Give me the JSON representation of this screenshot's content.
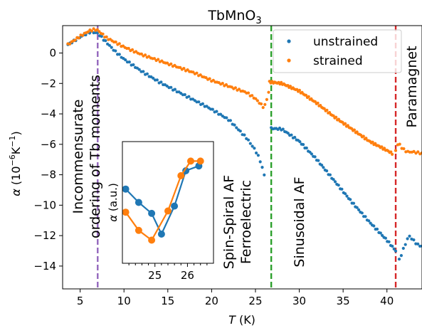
{
  "chart_data": [
    {
      "type": "scatter",
      "title_main": "TbMnO",
      "title_sub": "3",
      "xlabel_var": "T",
      "xlabel_unit": " (K)",
      "ylabel_var": "α",
      "ylabel_open": " (10",
      "ylabel_exp": "−6",
      "ylabel_unit_k": "K",
      "ylabel_unit_exp": "−1",
      "ylabel_close": ")",
      "xlim": [
        3,
        44
      ],
      "ylim": [
        -15.5,
        1.8
      ],
      "xticks": [
        "5",
        "10",
        "15",
        "20",
        "25",
        "30",
        "35",
        "40"
      ],
      "yticks": [
        "0",
        "−2",
        "−4",
        "−6",
        "−8",
        "−10",
        "−12",
        "−14"
      ],
      "ytick_values": [
        0,
        -2,
        -4,
        -6,
        -8,
        -10,
        -12,
        -14
      ],
      "xtick_values": [
        5,
        10,
        15,
        20,
        25,
        30,
        35,
        40
      ],
      "legend_position": "top-right",
      "series": [
        {
          "name": "unstrained",
          "color": "#1f77b4",
          "segments": [
            {
              "x_start": 3.6,
              "x_end": 26.0,
              "count": 100,
              "points": [
                [
                  3.6,
                  0.55
                ],
                [
                  5.0,
                  1.05
                ],
                [
                  6.2,
                  1.4
                ],
                [
                  7.0,
                  1.3
                ],
                [
                  7.5,
                  1.0
                ],
                [
                  8.0,
                  0.7
                ],
                [
                  9.0,
                  0.1
                ],
                [
                  10.0,
                  -0.4
                ],
                [
                  12.0,
                  -1.2
                ],
                [
                  14.0,
                  -1.9
                ],
                [
                  16.0,
                  -2.5
                ],
                [
                  18.0,
                  -3.1
                ],
                [
                  20.0,
                  -3.7
                ],
                [
                  22.0,
                  -4.4
                ],
                [
                  24.0,
                  -5.6
                ],
                [
                  25.0,
                  -6.4
                ],
                [
                  25.5,
                  -7.0
                ],
                [
                  26.0,
                  -8.0
                ]
              ]
            },
            {
              "x_start": 26.8,
              "x_end": 41.0,
              "count": 75,
              "points": [
                [
                  26.8,
                  -4.95
                ],
                [
                  28.0,
                  -5.0
                ],
                [
                  30.0,
                  -5.8
                ],
                [
                  32.0,
                  -7.0
                ],
                [
                  34.0,
                  -8.4
                ],
                [
                  36.0,
                  -9.8
                ],
                [
                  38.0,
                  -11.1
                ],
                [
                  40.0,
                  -12.3
                ],
                [
                  41.0,
                  -13.0
                ]
              ]
            },
            {
              "x_start": 41.4,
              "x_end": 44.0,
              "count": 12,
              "points": [
                [
                  41.4,
                  -13.6
                ],
                [
                  42.0,
                  -12.7
                ],
                [
                  42.5,
                  -12.0
                ],
                [
                  43.0,
                  -12.3
                ],
                [
                  43.5,
                  -12.6
                ],
                [
                  44.0,
                  -12.7
                ]
              ]
            }
          ]
        },
        {
          "name": "strained",
          "color": "#ff7f0e",
          "segments": [
            {
              "x_start": 3.6,
              "x_end": 26.5,
              "count": 110,
              "points": [
                [
                  3.6,
                  0.55
                ],
                [
                  5.0,
                  1.1
                ],
                [
                  6.0,
                  1.45
                ],
                [
                  6.6,
                  1.55
                ],
                [
                  7.0,
                  1.5
                ],
                [
                  7.5,
                  1.25
                ],
                [
                  8.0,
                  1.0
                ],
                [
                  10.0,
                  0.4
                ],
                [
                  12.0,
                  -0.1
                ],
                [
                  14.0,
                  -0.5
                ],
                [
                  16.0,
                  -0.9
                ],
                [
                  18.0,
                  -1.3
                ],
                [
                  20.0,
                  -1.8
                ],
                [
                  22.0,
                  -2.2
                ],
                [
                  24.0,
                  -2.6
                ],
                [
                  25.0,
                  -3.0
                ],
                [
                  25.5,
                  -3.3
                ],
                [
                  26.0,
                  -3.6
                ],
                [
                  26.5,
                  -2.6
                ]
              ]
            },
            {
              "x_start": 26.6,
              "x_end": 40.6,
              "count": 95,
              "points": [
                [
                  26.6,
                  -1.9
                ],
                [
                  28.0,
                  -2.0
                ],
                [
                  30.0,
                  -2.5
                ],
                [
                  32.0,
                  -3.3
                ],
                [
                  34.0,
                  -4.2
                ],
                [
                  36.0,
                  -5.0
                ],
                [
                  38.0,
                  -5.8
                ],
                [
                  40.0,
                  -6.4
                ],
                [
                  40.6,
                  -6.6
                ]
              ]
            },
            {
              "x_start": 41.0,
              "x_end": 44.0,
              "count": 14,
              "points": [
                [
                  41.0,
                  -6.4
                ],
                [
                  41.3,
                  -5.9
                ],
                [
                  41.8,
                  -6.3
                ],
                [
                  42.3,
                  -6.5
                ],
                [
                  43.0,
                  -6.5
                ],
                [
                  44.0,
                  -6.6
                ]
              ]
            }
          ]
        }
      ],
      "vlines": [
        {
          "x": 7.0,
          "color": "#9467bd",
          "style": "dashed"
        },
        {
          "x": 26.8,
          "color": "#2ca02c",
          "style": "dashed"
        },
        {
          "x": 41.0,
          "color": "#d62728",
          "style": "dashed"
        }
      ],
      "annotations": [
        {
          "line1": "Incommensurate",
          "line2": "ordering of Tb moments",
          "rotation": -90
        },
        {
          "line1": "Spin-Spiral AF",
          "line2": "Ferroelectric",
          "rotation": -90
        },
        {
          "line1": "Sinusoidal AF",
          "line2": "",
          "rotation": -90
        },
        {
          "line1": "Paramagnet",
          "line2": "",
          "rotation": -90
        }
      ]
    },
    {
      "type": "line",
      "inset": true,
      "xlabel": "",
      "ylabel": "α (a.u.)",
      "xticks": [
        "25",
        "26"
      ],
      "xtick_values": [
        25,
        26
      ],
      "xlim": [
        24.0,
        26.8
      ],
      "ylim": [
        0,
        10
      ],
      "series": [
        {
          "name": "unstrained",
          "color": "#1f77b4",
          "x": [
            24.1,
            24.5,
            24.9,
            25.2,
            25.6,
            25.95,
            26.35
          ],
          "y": [
            6.1,
            5.0,
            4.1,
            2.4,
            4.7,
            7.6,
            8.0
          ]
        },
        {
          "name": "strained",
          "color": "#ff7f0e",
          "x": [
            24.1,
            24.5,
            24.9,
            25.4,
            25.8,
            26.1,
            26.4
          ],
          "y": [
            4.2,
            2.7,
            1.9,
            4.3,
            7.2,
            8.4,
            8.4
          ]
        }
      ]
    }
  ]
}
